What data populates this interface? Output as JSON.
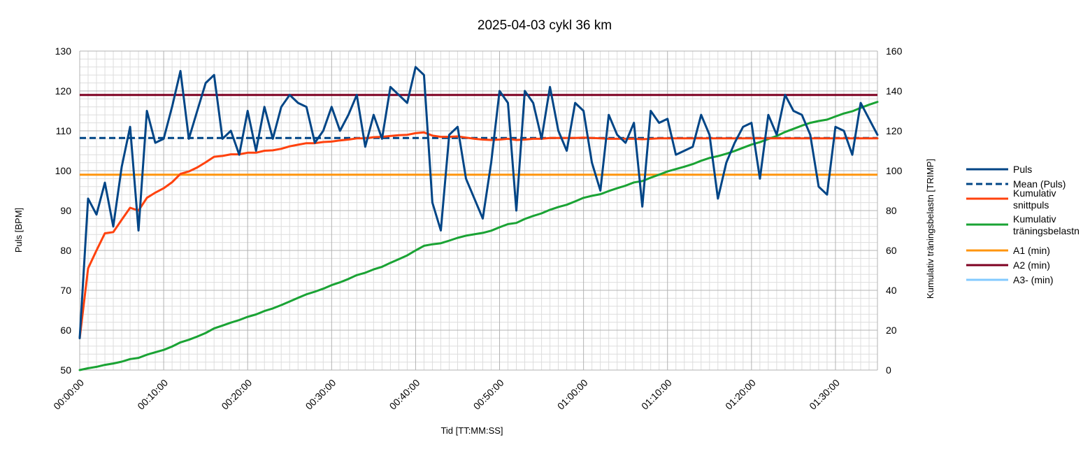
{
  "chart_data": {
    "type": "line",
    "title": "2025-04-03 cykl 36 km",
    "xlabel": "Tid [TT:MM:SS]",
    "ylabel": "Puls [BPM]",
    "y2label": "Kumulativ träningsbelastn [TRIMP]",
    "x_minutes_range": [
      0,
      95
    ],
    "x_tick_minutes": [
      0,
      10,
      20,
      30,
      40,
      50,
      60,
      70,
      80,
      90
    ],
    "x_tick_labels": [
      "00:00:00",
      "00:10:00",
      "00:20:00",
      "00:30:00",
      "00:40:00",
      "00:50:00",
      "01:00:00",
      "01:10:00",
      "01:20:00",
      "01:30:00"
    ],
    "ylim": [
      50,
      130
    ],
    "y_ticks": [
      50,
      60,
      70,
      80,
      90,
      100,
      110,
      120,
      130
    ],
    "y2lim": [
      0,
      160
    ],
    "y2_ticks": [
      0,
      20,
      40,
      60,
      80,
      100,
      120,
      140,
      160
    ],
    "grid": true,
    "legend_position": "right",
    "x_minutes": [
      0,
      1,
      2,
      3,
      4,
      5,
      6,
      7,
      8,
      9,
      10,
      11,
      12,
      13,
      14,
      15,
      16,
      17,
      18,
      19,
      20,
      21,
      22,
      23,
      24,
      25,
      26,
      27,
      28,
      29,
      30,
      31,
      32,
      33,
      34,
      35,
      36,
      37,
      38,
      39,
      40,
      41,
      42,
      43,
      44,
      45,
      46,
      47,
      48,
      49,
      50,
      51,
      52,
      53,
      54,
      55,
      56,
      57,
      58,
      59,
      60,
      61,
      62,
      63,
      64,
      65,
      66,
      67,
      68,
      69,
      70,
      71,
      72,
      73,
      74,
      75,
      76,
      77,
      78,
      79,
      80,
      81,
      82,
      83,
      84,
      85,
      86,
      87,
      88,
      89,
      90,
      91,
      92,
      93,
      94,
      95
    ],
    "series": [
      {
        "name": "Puls",
        "axis": "left",
        "color": "#004586",
        "style": "solid",
        "values": [
          58,
          93,
          89,
          97,
          86,
          101,
          111,
          85,
          115,
          107,
          108,
          116,
          125,
          108,
          115,
          122,
          124,
          108,
          110,
          104,
          115,
          105,
          116,
          108,
          116,
          119,
          117,
          116,
          107,
          110,
          116,
          110,
          114,
          119,
          106,
          114,
          108,
          121,
          119,
          117,
          126,
          124,
          92,
          85,
          109,
          111,
          98,
          93,
          88,
          102,
          120,
          117,
          90,
          120,
          117,
          108,
          121,
          110,
          105,
          117,
          115,
          102,
          95,
          114,
          109,
          107,
          112,
          91,
          115,
          112,
          113,
          104,
          105,
          106,
          114,
          109,
          93,
          102,
          107,
          111,
          112,
          98,
          114,
          109,
          119,
          115,
          114,
          109,
          96,
          94,
          111,
          110,
          104,
          117,
          113,
          109
        ]
      },
      {
        "name": "Mean (Puls)",
        "axis": "left",
        "color": "#004586",
        "style": "dashed",
        "constant": 108.2
      },
      {
        "name": "Kumulativ snittpuls",
        "axis": "left",
        "color": "#ff420e",
        "style": "solid",
        "values": [
          58,
          75.5,
          80,
          84.3,
          84.6,
          87.7,
          90.7,
          90,
          93.2,
          94.5,
          95.6,
          97.1,
          99.2,
          99.8,
          100.8,
          102.1,
          103.5,
          103.7,
          104.1,
          104.1,
          104.5,
          104.5,
          105,
          105.1,
          105.5,
          106.1,
          106.5,
          106.9,
          106.9,
          107.2,
          107.3,
          107.6,
          107.8,
          108.1,
          108.1,
          108.4,
          108.5,
          108.7,
          108.9,
          109,
          109.4,
          109.6,
          108.8,
          108.5,
          108.5,
          108.6,
          108.3,
          108,
          107.8,
          107.7,
          107.8,
          108,
          107.7,
          107.8,
          108,
          108,
          108.2,
          108.2,
          108.2,
          108.2,
          108.3,
          108.2,
          108.1,
          108,
          108,
          108,
          108,
          107.9,
          108,
          108.1,
          108.1,
          108.1,
          108.1,
          108.1,
          108.1,
          108.1,
          108.1,
          108.1,
          108.1,
          108.1,
          108.1,
          108.1,
          108.1,
          108.1,
          108.1,
          108.1,
          108.1,
          108.1,
          108.1,
          108.1,
          108.1,
          108.1,
          108.1,
          108.1,
          108.1,
          108.1
        ]
      },
      {
        "name": "Kumulativ träningsbelastn",
        "axis": "right",
        "color": "#1aa334",
        "style": "solid",
        "values": [
          0,
          0.9,
          1.6,
          2.6,
          3.3,
          4.2,
          5.5,
          6.1,
          7.7,
          8.9,
          10.1,
          11.8,
          13.9,
          15.2,
          16.8,
          18.6,
          20.9,
          22.3,
          23.8,
          25.1,
          26.7,
          27.9,
          29.6,
          30.9,
          32.6,
          34.4,
          36.2,
          38,
          39.3,
          40.8,
          42.6,
          44,
          45.7,
          47.6,
          48.8,
          50.5,
          51.8,
          53.8,
          55.6,
          57.5,
          60,
          62.3,
          63.1,
          63.6,
          64.9,
          66.3,
          67.4,
          68.1,
          68.8,
          69.9,
          71.6,
          73.2,
          73.8,
          75.8,
          77.3,
          78.6,
          80.4,
          81.8,
          82.9,
          84.6,
          86.4,
          87.4,
          88.2,
          89.8,
          91.2,
          92.5,
          94.1,
          94.8,
          96.5,
          98,
          99.6,
          100.8,
          102,
          103.3,
          105,
          106.4,
          107.3,
          108.5,
          109.9,
          111.5,
          113.1,
          114.3,
          115.9,
          117.4,
          119.4,
          121,
          122.6,
          124,
          124.9,
          125.6,
          127.2,
          128.7,
          129.8,
          131.5,
          133.1,
          134.5
        ]
      },
      {
        "name": "A1 (min)",
        "axis": "left",
        "color": "#ff950e",
        "style": "solid",
        "constant": 99
      },
      {
        "name": "A2 (min)",
        "axis": "left",
        "color": "#7e0021",
        "style": "solid",
        "constant": 119
      },
      {
        "name": "A3- (min)",
        "axis": "left",
        "color": "#83caff",
        "style": "solid",
        "constant": null
      }
    ]
  },
  "legend": {
    "items": [
      {
        "label": "Puls",
        "label2": "",
        "color": "#004586",
        "style": "solid"
      },
      {
        "label": "Mean (Puls)",
        "label2": "",
        "color": "#004586",
        "style": "dashed"
      },
      {
        "label": "Kumulativ",
        "label2": "snittpuls",
        "color": "#ff420e",
        "style": "solid"
      },
      {
        "label": "Kumulativ",
        "label2": "träningsbelastn",
        "color": "#1aa334",
        "style": "solid"
      },
      {
        "label": "A1 (min)",
        "label2": "",
        "color": "#ff950e",
        "style": "solid"
      },
      {
        "label": "A2 (min)",
        "label2": "",
        "color": "#7e0021",
        "style": "solid"
      },
      {
        "label": "A3- (min)",
        "label2": "",
        "color": "#83caff",
        "style": "solid"
      }
    ]
  },
  "colors": {
    "major_grid": "#b3b3b3",
    "minor_grid": "#dddddd",
    "axis_text": "#000000"
  }
}
